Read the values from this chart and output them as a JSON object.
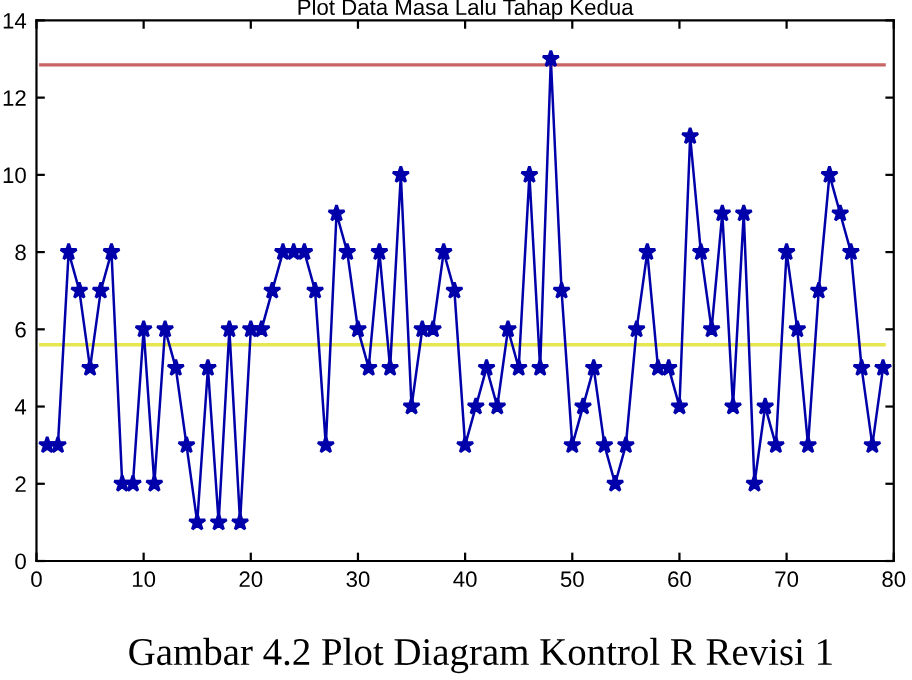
{
  "chart_data": {
    "type": "line",
    "title": "Plot Data Masa Lalu Tahap Kedua",
    "x": [
      1,
      2,
      3,
      4,
      5,
      6,
      7,
      8,
      9,
      10,
      11,
      12,
      13,
      14,
      15,
      16,
      17,
      18,
      19,
      20,
      21,
      22,
      23,
      24,
      25,
      26,
      27,
      28,
      29,
      30,
      31,
      32,
      33,
      34,
      35,
      36,
      37,
      38,
      39,
      40,
      41,
      42,
      43,
      44,
      45,
      46,
      47,
      48,
      49,
      50,
      51,
      52,
      53,
      54,
      55,
      56,
      57,
      58,
      59,
      60,
      61,
      62,
      63,
      64,
      65,
      66,
      67,
      68,
      69,
      70,
      71,
      72,
      73,
      74,
      75,
      76,
      77,
      78,
      79
    ],
    "series": [
      {
        "color": "#0000aa",
        "values": [
          3,
          3,
          8,
          7,
          5,
          7,
          8,
          2,
          2,
          6,
          2,
          6,
          5,
          3,
          1,
          5,
          1,
          6,
          1,
          6,
          6,
          7,
          8,
          8,
          8,
          7,
          3,
          9,
          8,
          6,
          5,
          8,
          5,
          10,
          4,
          6,
          6,
          8,
          7,
          3,
          4,
          5,
          4,
          6,
          5,
          10,
          5,
          13,
          7,
          3,
          4,
          5,
          3,
          2,
          3,
          6,
          8,
          5,
          5,
          4,
          11,
          8,
          6,
          9,
          4,
          9,
          2,
          4,
          3,
          8,
          6,
          3,
          7,
          10,
          9,
          8,
          5,
          3,
          5
        ]
      }
    ],
    "marker": "star",
    "line_style": "solid",
    "grid": false,
    "legend": false,
    "xlim": [
      0,
      80
    ],
    "xticks": [
      0,
      10,
      20,
      30,
      40,
      50,
      60,
      70,
      80
    ],
    "ylim": [
      0,
      14
    ],
    "yticks": [
      0,
      2,
      4,
      6,
      8,
      10,
      12,
      14
    ],
    "ref_lines": [
      {
        "axis": "y",
        "value": 12.85,
        "color": "#c86464"
      },
      {
        "axis": "y",
        "value": 5.6,
        "color": "#e6e650"
      }
    ],
    "annotations": [
      "Gambar 4.2 Plot Diagram Kontrol R Revisi 1"
    ]
  }
}
